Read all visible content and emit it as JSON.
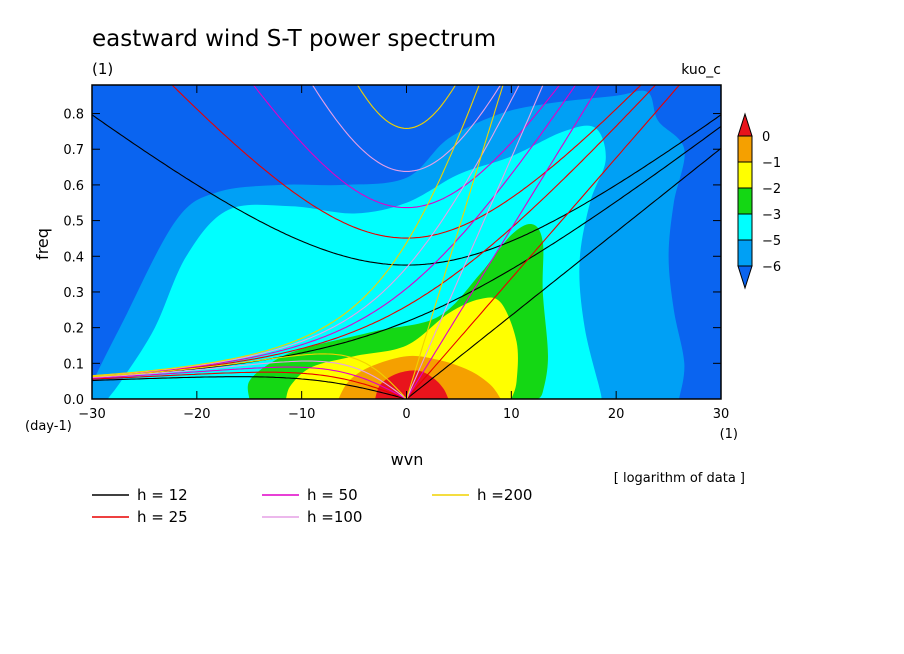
{
  "chart_data": {
    "type": "heatmap",
    "title": "eastward wind S-T power spectrum",
    "subtitle_left": "(1)",
    "subtitle_right": "kuo_c",
    "xlabel": "wvn",
    "ylabel": "freq",
    "x_unit": "(1)",
    "y_unit": "(day-1)",
    "note": "[ logarithm of data ]",
    "xlim": [
      -30,
      30
    ],
    "ylim": [
      0,
      0.88
    ],
    "x_ticks": [
      -30,
      -20,
      -10,
      0,
      10,
      20,
      30
    ],
    "y_ticks": [
      0.0,
      0.1,
      0.2,
      0.3,
      0.4,
      0.5,
      0.6,
      0.7,
      0.8
    ],
    "colorbar": {
      "labels": [
        "0",
        "-1",
        "-2",
        "-3",
        "-5",
        "-6"
      ],
      "colors": [
        "#e8141c",
        "#f5a000",
        "#ffff00",
        "#14d714",
        "#00ffff",
        "#00a0f5",
        "#0a64f0"
      ]
    },
    "dispersion_lines": [
      {
        "label": "h = 12",
        "h": 12,
        "color": "#000000"
      },
      {
        "label": "h = 25",
        "h": 25,
        "color": "#e80000"
      },
      {
        "label": "h = 50",
        "h": 50,
        "color": "#e000c8"
      },
      {
        "label": "h =100",
        "h": 100,
        "color": "#e6a0e6"
      },
      {
        "label": "h =200",
        "h": 200,
        "color": "#f0d200"
      }
    ]
  }
}
